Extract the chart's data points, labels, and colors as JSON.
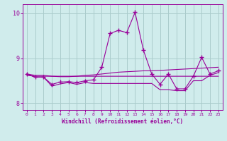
{
  "x": [
    0,
    1,
    2,
    3,
    4,
    5,
    6,
    7,
    8,
    9,
    10,
    11,
    12,
    13,
    14,
    15,
    16,
    17,
    18,
    19,
    20,
    21,
    22,
    23
  ],
  "main_line": [
    8.65,
    8.58,
    8.58,
    8.42,
    8.47,
    8.48,
    8.46,
    8.5,
    8.52,
    8.8,
    9.55,
    9.62,
    9.57,
    10.02,
    9.18,
    8.65,
    8.42,
    8.65,
    8.32,
    8.32,
    8.6,
    9.02,
    8.65,
    8.72
  ],
  "upper_line": [
    8.65,
    8.62,
    8.62,
    8.6,
    8.59,
    8.59,
    8.6,
    8.62,
    8.63,
    8.65,
    8.67,
    8.69,
    8.7,
    8.71,
    8.72,
    8.72,
    8.73,
    8.74,
    8.75,
    8.76,
    8.77,
    8.78,
    8.79,
    8.8
  ],
  "flat_line": [
    8.62,
    8.6,
    8.6,
    8.6,
    8.6,
    8.6,
    8.6,
    8.6,
    8.6,
    8.6,
    8.6,
    8.6,
    8.6,
    8.6,
    8.6,
    8.6,
    8.6,
    8.6,
    8.6,
    8.6,
    8.6,
    8.6,
    8.6,
    8.6
  ],
  "lower_line": [
    8.65,
    8.58,
    8.58,
    8.38,
    8.43,
    8.46,
    8.42,
    8.46,
    8.44,
    8.44,
    8.44,
    8.44,
    8.44,
    8.44,
    8.44,
    8.44,
    8.3,
    8.3,
    8.28,
    8.28,
    8.5,
    8.5,
    8.62,
    8.68
  ],
  "color": "#990099",
  "bg_color": "#d0ecec",
  "grid_color": "#aacccc",
  "xlabel": "Windchill (Refroidissement éolien,°C)",
  "ylim": [
    7.85,
    10.2
  ],
  "xlim": [
    -0.5,
    23.5
  ],
  "yticks": [
    8,
    9,
    10
  ],
  "xticks": [
    0,
    1,
    2,
    3,
    4,
    5,
    6,
    7,
    8,
    9,
    10,
    11,
    12,
    13,
    14,
    15,
    16,
    17,
    18,
    19,
    20,
    21,
    22,
    23
  ]
}
